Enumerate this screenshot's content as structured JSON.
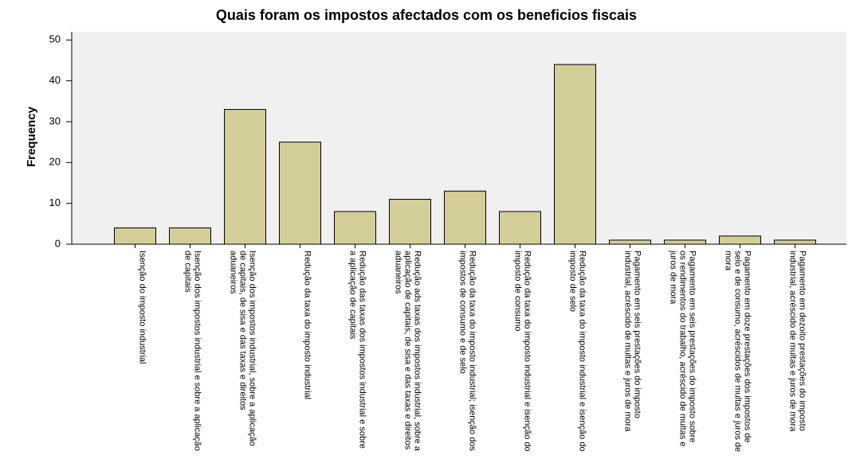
{
  "chart_data": {
    "type": "bar",
    "title": "Quais foram os impostos afectados com os beneficios fiscais",
    "ylabel": "Frequency",
    "categories": [
      "Isenção do imposto industrial",
      "Isenção dos impostos industrial e sobre a aplicação de capitais",
      "Isenção dos impostos industrial, sobre a aplicação de capitais, de sisa e das taxas e direitos aduaneiros",
      "Redução da taxa do imposto industrial",
      "Redução das taxas dos impostos industrial e sobre a aplicação de capitais",
      "Redução ads taxas dos impostos industrial, sobre a aplicação de capitais, de sisa e das taxas e direitos aduaneiros",
      "Redução da taxa do imposto industrial; isenção dos impostos de consumo e de selo",
      "Redução da taxa do imposto industrial e isenção do imposto de consumo",
      "Redução da taxa do imposto industrial e isenção do imposto de selo",
      "Pagamento em seis prestações do imposto industrial, acréscido de multas e juros de mora",
      "Pagamento em seis prestações do imposto sobre os rendimentos do trabalho, acréscido de multas e juros de mora",
      "Pagamento em doze prestações dos impostos de selo e de consumo, acréscidos de multas e juros de mora",
      "Pagamento em dezoito prestações do imposto industrial, acréscido de multas e juros de mora"
    ],
    "values": [
      4,
      4,
      33,
      25,
      8,
      11,
      13,
      8,
      44,
      1,
      1,
      2,
      1
    ],
    "color": "#d3ce97",
    "ylim": [
      0,
      52
    ],
    "yticks": [
      0,
      10,
      20,
      30,
      40,
      50
    ],
    "grid": false
  }
}
